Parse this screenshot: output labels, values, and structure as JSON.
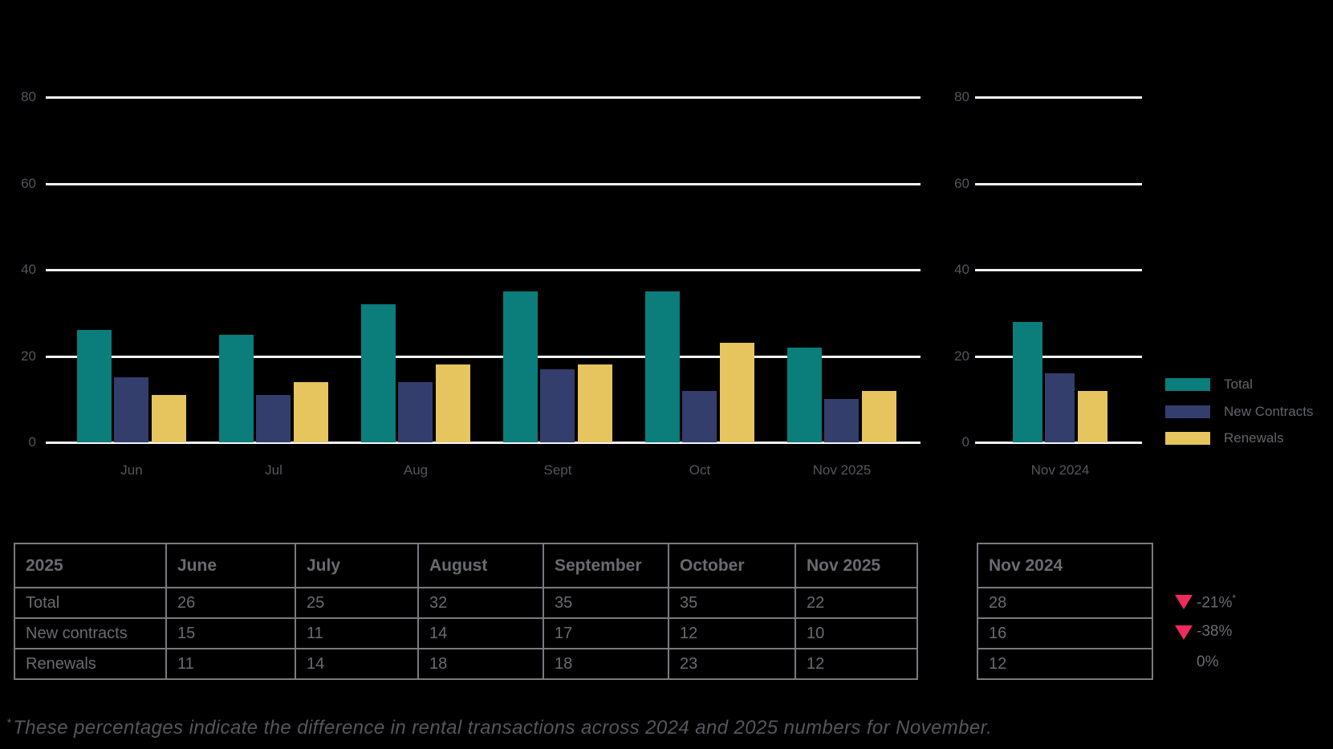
{
  "page": {
    "background": "#000000",
    "description_visible_text_only": true
  },
  "colors": {
    "total": "#0b7d7a",
    "new_contracts": "#333e6d",
    "renewals": "#e6c55e",
    "decrease": "#ee2b5d",
    "gridline": "#f4f4f4",
    "text_muted": "#55565c",
    "text_table": "#6a6b71",
    "table_border": "#797a80"
  },
  "chart_data": [
    {
      "type": "bar",
      "title": "",
      "categories": [
        "Jun",
        "Jul",
        "Aug",
        "Sept",
        "Oct",
        "Nov 2025"
      ],
      "series": [
        {
          "name": "Total",
          "color_key": "total",
          "values": [
            26,
            25,
            32,
            35,
            35,
            22
          ]
        },
        {
          "name": "New Contracts",
          "color_key": "new_contracts",
          "values": [
            15,
            11,
            14,
            17,
            12,
            10
          ]
        },
        {
          "name": "Renewals",
          "color_key": "renewals",
          "values": [
            11,
            14,
            18,
            18,
            23,
            12
          ]
        }
      ],
      "ylim": [
        0,
        80
      ],
      "yticks": [
        0,
        20,
        40,
        60,
        80
      ],
      "grid": true,
      "xlabel": "",
      "ylabel": ""
    },
    {
      "type": "bar",
      "title": "",
      "categories": [
        "Nov 2024"
      ],
      "series": [
        {
          "name": "Total",
          "color_key": "total",
          "values": [
            28
          ]
        },
        {
          "name": "New Contracts",
          "color_key": "new_contracts",
          "values": [
            16
          ]
        },
        {
          "name": "Renewals",
          "color_key": "renewals",
          "values": [
            12
          ]
        }
      ],
      "ylim": [
        0,
        80
      ],
      "yticks": [
        0,
        20,
        40,
        60,
        80
      ],
      "grid": true,
      "xlabel": "",
      "ylabel": ""
    }
  ],
  "legend": [
    {
      "label": "Total",
      "color_key": "total"
    },
    {
      "label": "New Contracts",
      "color_key": "new_contracts"
    },
    {
      "label": "Renewals",
      "color_key": "renewals"
    }
  ],
  "main_table": {
    "headers": [
      "2025",
      "June",
      "July",
      "August",
      "September",
      "October",
      "Nov 2025"
    ],
    "rows": [
      {
        "label": "Total",
        "values": [
          "26",
          "25",
          "32",
          "35",
          "35",
          "22"
        ]
      },
      {
        "label": "New contracts",
        "values": [
          "15",
          "11",
          "14",
          "17",
          "12",
          "10"
        ]
      },
      {
        "label": "Renewals",
        "values": [
          "11",
          "14",
          "18",
          "18",
          "23",
          "12"
        ]
      }
    ]
  },
  "side_table": {
    "header": "Nov 2024",
    "values": [
      "28",
      "16",
      "12"
    ]
  },
  "comparisons": [
    {
      "value": "-21%",
      "direction": "down",
      "superscript": "*"
    },
    {
      "value": "-38%",
      "direction": "down",
      "superscript": ""
    },
    {
      "value": "0%",
      "direction": "none",
      "superscript": ""
    }
  ],
  "footnote": {
    "marker": "*",
    "text": "These percentages indicate the difference in rental transactions across 2024 and 2025 numbers for November."
  }
}
